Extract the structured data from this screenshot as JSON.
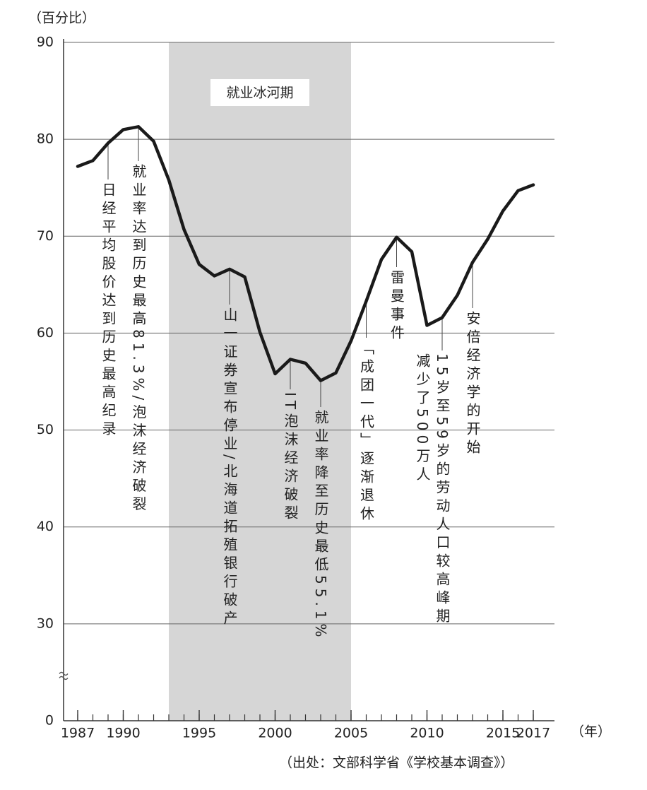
{
  "chart_data": {
    "type": "line",
    "y_unit_label": "（百分比）",
    "x_unit_label": "（年）",
    "source": "（出处：文部科学省《学校基本调查》）",
    "x": [
      1987,
      1988,
      1989,
      1990,
      1991,
      1992,
      1993,
      1994,
      1995,
      1996,
      1997,
      1998,
      1999,
      2000,
      2001,
      2002,
      2003,
      2004,
      2005,
      2006,
      2007,
      2008,
      2009,
      2010,
      2011,
      2012,
      2013,
      2014,
      2015,
      2016,
      2017
    ],
    "values": [
      77.2,
      77.8,
      79.6,
      81.0,
      81.3,
      79.8,
      75.8,
      70.7,
      67.1,
      65.9,
      66.6,
      65.8,
      60.1,
      55.8,
      57.3,
      56.9,
      55.1,
      55.9,
      59.2,
      63.3,
      67.6,
      69.9,
      68.4,
      60.8,
      61.6,
      63.9,
      67.3,
      69.7,
      72.6,
      74.7,
      75.3
    ],
    "color": "#1a1a1a",
    "xlim": [
      1987,
      2017
    ],
    "xticks": [
      1987,
      1990,
      1995,
      2000,
      2005,
      2010,
      2015,
      2017
    ],
    "x_minor_tick_step": 1,
    "ylim": [
      0,
      90
    ],
    "yticks": [
      0,
      30,
      40,
      50,
      60,
      70,
      80,
      90
    ],
    "y_axis_break": true,
    "grid": true,
    "shaded_region": {
      "from": 1993,
      "to": 2005,
      "label": "就业冰河期",
      "color": "#d6d6d6"
    },
    "annotations": [
      {
        "x": 1989,
        "lines": [
          "日经平均股价达到历史最高纪录"
        ]
      },
      {
        "x": 1991,
        "lines": [
          "就业率达到历史最高81.3%/泡沫经济破裂"
        ]
      },
      {
        "x": 1997,
        "lines": [
          "山一证券宣布停业/北海道拓殖银行破产"
        ]
      },
      {
        "x": 2001,
        "lines": [
          "IT泡沫经济破裂"
        ]
      },
      {
        "x": 2003,
        "lines": [
          "就业率降至历史最低55.1%"
        ]
      },
      {
        "x": 2006,
        "lines": [
          "「成团一代」逐渐退休"
        ]
      },
      {
        "x": 2008,
        "lines": [
          "雷曼事件"
        ]
      },
      {
        "x": 2011,
        "lines": [
          "15岁至59岁的劳动人口较高峰期",
          "减少了500万人"
        ]
      },
      {
        "x": 2013,
        "lines": [
          "安倍经济学的开始"
        ]
      }
    ]
  }
}
